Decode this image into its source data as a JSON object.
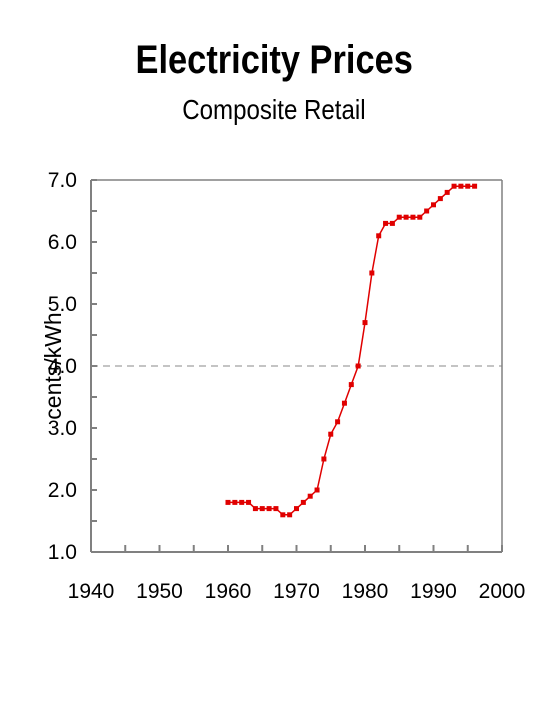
{
  "chart_data": {
    "type": "line",
    "title": "Electricity Prices",
    "subtitle": "Composite Retail",
    "xlabel": "",
    "ylabel": "cents/kWh",
    "xlim": [
      1940,
      2000
    ],
    "ylim": [
      1.0,
      7.0
    ],
    "x_ticks": [
      "1940",
      "1950",
      "1960",
      "1970",
      "1980",
      "1990",
      "2000"
    ],
    "y_ticks": [
      "1.0",
      "2.0",
      "3.0",
      "4.0",
      "5.0",
      "6.0",
      "7.0"
    ],
    "reference_line": {
      "y": 4.0,
      "style": "dashed"
    },
    "grid": false,
    "legend": "none",
    "series": [
      {
        "color": "#e00000",
        "x": [
          1960,
          1961,
          1962,
          1963,
          1964,
          1965,
          1966,
          1967,
          1968,
          1969,
          1970,
          1971,
          1972,
          1973,
          1974,
          1975,
          1976,
          1977,
          1978,
          1979,
          1980,
          1981,
          1982,
          1983,
          1984,
          1985,
          1986,
          1987,
          1988,
          1989,
          1990,
          1991,
          1992,
          1993,
          1994,
          1995,
          1996
        ],
        "y": [
          1.8,
          1.8,
          1.8,
          1.8,
          1.7,
          1.7,
          1.7,
          1.7,
          1.6,
          1.6,
          1.7,
          1.8,
          1.9,
          2.0,
          2.5,
          2.9,
          3.1,
          3.4,
          3.7,
          4.0,
          4.7,
          5.5,
          6.1,
          6.3,
          6.3,
          6.4,
          6.4,
          6.4,
          6.4,
          6.5,
          6.6,
          6.7,
          6.8,
          6.9,
          6.9,
          6.9,
          6.9
        ]
      }
    ]
  }
}
